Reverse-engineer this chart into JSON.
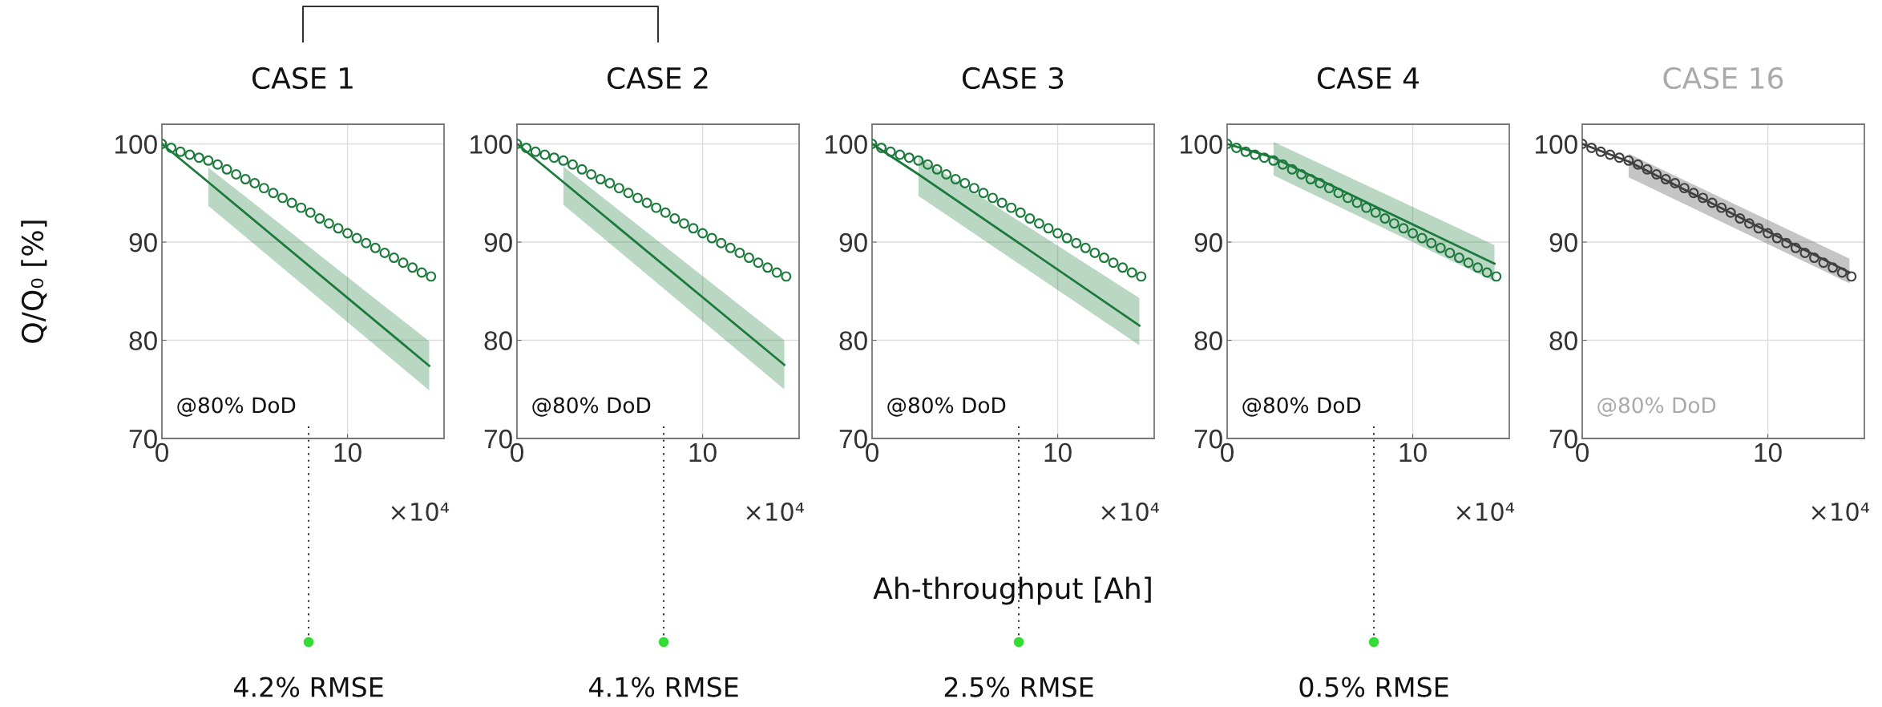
{
  "chart_data": [
    {
      "type": "line",
      "title": "CASE 1",
      "ylabel": "Q/Q₀ [%]",
      "xlim": [
        0,
        15.2
      ],
      "ylim": [
        70,
        102
      ],
      "xticks": [
        0,
        10
      ],
      "yticks": [
        70,
        80,
        90,
        100
      ],
      "grid": true,
      "annotations": [
        "@80% DoD",
        "×10⁴",
        "4.2% RMSE"
      ],
      "series": [
        {
          "type": "scatter",
          "marker": "circle",
          "color": "#1b7a3c",
          "x": [
            0,
            0.5,
            1,
            1.5,
            2,
            2.5,
            3,
            3.5,
            4,
            4.5,
            5,
            5.5,
            6,
            6.5,
            7,
            7.5,
            8,
            8.5,
            9,
            9.5,
            10,
            10.5,
            11,
            11.5,
            12,
            12.5,
            13,
            13.5,
            14,
            14.5
          ],
          "values": [
            100,
            99.6,
            99.2,
            98.9,
            98.6,
            98.3,
            97.9,
            97.4,
            96.9,
            96.4,
            96.0,
            95.5,
            95.0,
            94.5,
            94.0,
            93.5,
            93.0,
            92.4,
            91.9,
            91.4,
            90.9,
            90.4,
            89.9,
            89.4,
            88.9,
            88.4,
            87.9,
            87.4,
            86.9,
            86.5
          ]
        },
        {
          "color": "#1b7a3c",
          "x": [
            0,
            2.5,
            14.4
          ],
          "values": [
            100,
            96.1,
            77.4
          ],
          "lower": [
            null,
            93.7,
            74.9
          ],
          "upper": [
            null,
            97.6,
            79.9
          ]
        }
      ]
    },
    {
      "type": "line",
      "title": "CASE 2",
      "xlim": [
        0,
        15.2
      ],
      "ylim": [
        70,
        102
      ],
      "xticks": [
        0,
        10
      ],
      "yticks": [
        70,
        80,
        90,
        100
      ],
      "grid": true,
      "annotations": [
        "@80% DoD",
        "×10⁴",
        "4.1% RMSE"
      ],
      "series": [
        {
          "type": "scatter",
          "marker": "circle",
          "color": "#1b7a3c",
          "x": [
            0,
            0.5,
            1,
            1.5,
            2,
            2.5,
            3,
            3.5,
            4,
            4.5,
            5,
            5.5,
            6,
            6.5,
            7,
            7.5,
            8,
            8.5,
            9,
            9.5,
            10,
            10.5,
            11,
            11.5,
            12,
            12.5,
            13,
            13.5,
            14,
            14.5
          ],
          "values": [
            100,
            99.6,
            99.2,
            98.9,
            98.6,
            98.3,
            97.9,
            97.4,
            96.9,
            96.4,
            96.0,
            95.5,
            95.0,
            94.5,
            94.0,
            93.5,
            93.0,
            92.4,
            91.9,
            91.4,
            90.9,
            90.4,
            89.9,
            89.4,
            88.9,
            88.4,
            87.9,
            87.4,
            86.9,
            86.5
          ]
        },
        {
          "color": "#1b7a3c",
          "x": [
            0,
            2.5,
            14.4
          ],
          "values": [
            100,
            96.1,
            77.5
          ],
          "lower": [
            null,
            93.8,
            75.0
          ],
          "upper": [
            null,
            97.7,
            80.0
          ]
        }
      ]
    },
    {
      "type": "line",
      "title": "CASE 3",
      "xlabel": "Ah-throughput [Ah]",
      "xlim": [
        0,
        15.2
      ],
      "ylim": [
        70,
        102
      ],
      "xticks": [
        0,
        10
      ],
      "yticks": [
        70,
        80,
        90,
        100
      ],
      "grid": true,
      "annotations": [
        "@80% DoD",
        "×10⁴",
        "2.5% RMSE"
      ],
      "series": [
        {
          "type": "scatter",
          "marker": "circle",
          "color": "#1b7a3c",
          "x": [
            0,
            0.5,
            1,
            1.5,
            2,
            2.5,
            3,
            3.5,
            4,
            4.5,
            5,
            5.5,
            6,
            6.5,
            7,
            7.5,
            8,
            8.5,
            9,
            9.5,
            10,
            10.5,
            11,
            11.5,
            12,
            12.5,
            13,
            13.5,
            14,
            14.5
          ],
          "values": [
            100,
            99.6,
            99.2,
            98.9,
            98.6,
            98.3,
            97.9,
            97.4,
            96.9,
            96.4,
            96.0,
            95.5,
            95.0,
            94.5,
            94.0,
            93.5,
            93.0,
            92.4,
            91.9,
            91.4,
            90.9,
            90.4,
            89.9,
            89.4,
            88.9,
            88.4,
            87.9,
            87.4,
            86.9,
            86.5
          ]
        },
        {
          "color": "#1b7a3c",
          "x": [
            0,
            2.5,
            14.4
          ],
          "values": [
            100,
            96.9,
            81.5
          ],
          "lower": [
            null,
            94.7,
            79.5
          ],
          "upper": [
            null,
            98.7,
            84.3
          ]
        }
      ]
    },
    {
      "type": "line",
      "title": "CASE 4",
      "xlim": [
        0,
        15.2
      ],
      "ylim": [
        70,
        102
      ],
      "xticks": [
        0,
        10
      ],
      "yticks": [
        70,
        80,
        90,
        100
      ],
      "grid": true,
      "annotations": [
        "@80% DoD",
        "×10⁴",
        "0.5% RMSE"
      ],
      "series": [
        {
          "type": "scatter",
          "marker": "circle",
          "color": "#1b7a3c",
          "x": [
            0,
            0.5,
            1,
            1.5,
            2,
            2.5,
            3,
            3.5,
            4,
            4.5,
            5,
            5.5,
            6,
            6.5,
            7,
            7.5,
            8,
            8.5,
            9,
            9.5,
            10,
            10.5,
            11,
            11.5,
            12,
            12.5,
            13,
            13.5,
            14,
            14.5
          ],
          "values": [
            100,
            99.6,
            99.2,
            98.9,
            98.6,
            98.3,
            97.9,
            97.4,
            96.9,
            96.4,
            96.0,
            95.5,
            95.0,
            94.5,
            94.0,
            93.5,
            93.0,
            92.4,
            91.9,
            91.4,
            90.9,
            90.4,
            89.9,
            89.4,
            88.9,
            88.4,
            87.9,
            87.4,
            86.9,
            86.5
          ]
        },
        {
          "color": "#1b7a3c",
          "x": [
            0,
            2.5,
            14.4
          ],
          "values": [
            100,
            98.6,
            87.8
          ],
          "lower": [
            null,
            96.8,
            86.0
          ],
          "upper": [
            null,
            100.2,
            89.7
          ]
        }
      ]
    },
    {
      "type": "line",
      "title": "CASE 16",
      "xlim": [
        0,
        15.2
      ],
      "ylim": [
        70,
        102
      ],
      "xticks": [
        0,
        10
      ],
      "yticks": [
        70,
        80,
        90,
        100
      ],
      "grid": true,
      "annotations": [
        "@80% DoD",
        "×10⁴"
      ],
      "series": [
        {
          "type": "scatter",
          "marker": "circle",
          "color": "#404040",
          "x": [
            0,
            0.5,
            1,
            1.5,
            2,
            2.5,
            3,
            3.5,
            4,
            4.5,
            5,
            5.5,
            6,
            6.5,
            7,
            7.5,
            8,
            8.5,
            9,
            9.5,
            10,
            10.5,
            11,
            11.5,
            12,
            12.5,
            13,
            13.5,
            14,
            14.5
          ],
          "values": [
            100,
            99.6,
            99.2,
            98.9,
            98.6,
            98.3,
            97.9,
            97.4,
            96.9,
            96.4,
            96.0,
            95.5,
            95.0,
            94.5,
            94.0,
            93.5,
            93.0,
            92.4,
            91.9,
            91.4,
            90.9,
            90.4,
            89.9,
            89.4,
            88.9,
            88.4,
            87.9,
            87.4,
            86.9,
            86.5
          ]
        },
        {
          "color": "#404040",
          "x": [
            0,
            2.5,
            14.4
          ],
          "values": [
            100,
            98.2,
            86.9
          ],
          "lower": [
            null,
            96.6,
            85.8
          ],
          "upper": [
            null,
            99.0,
            88.3
          ]
        }
      ]
    }
  ]
}
